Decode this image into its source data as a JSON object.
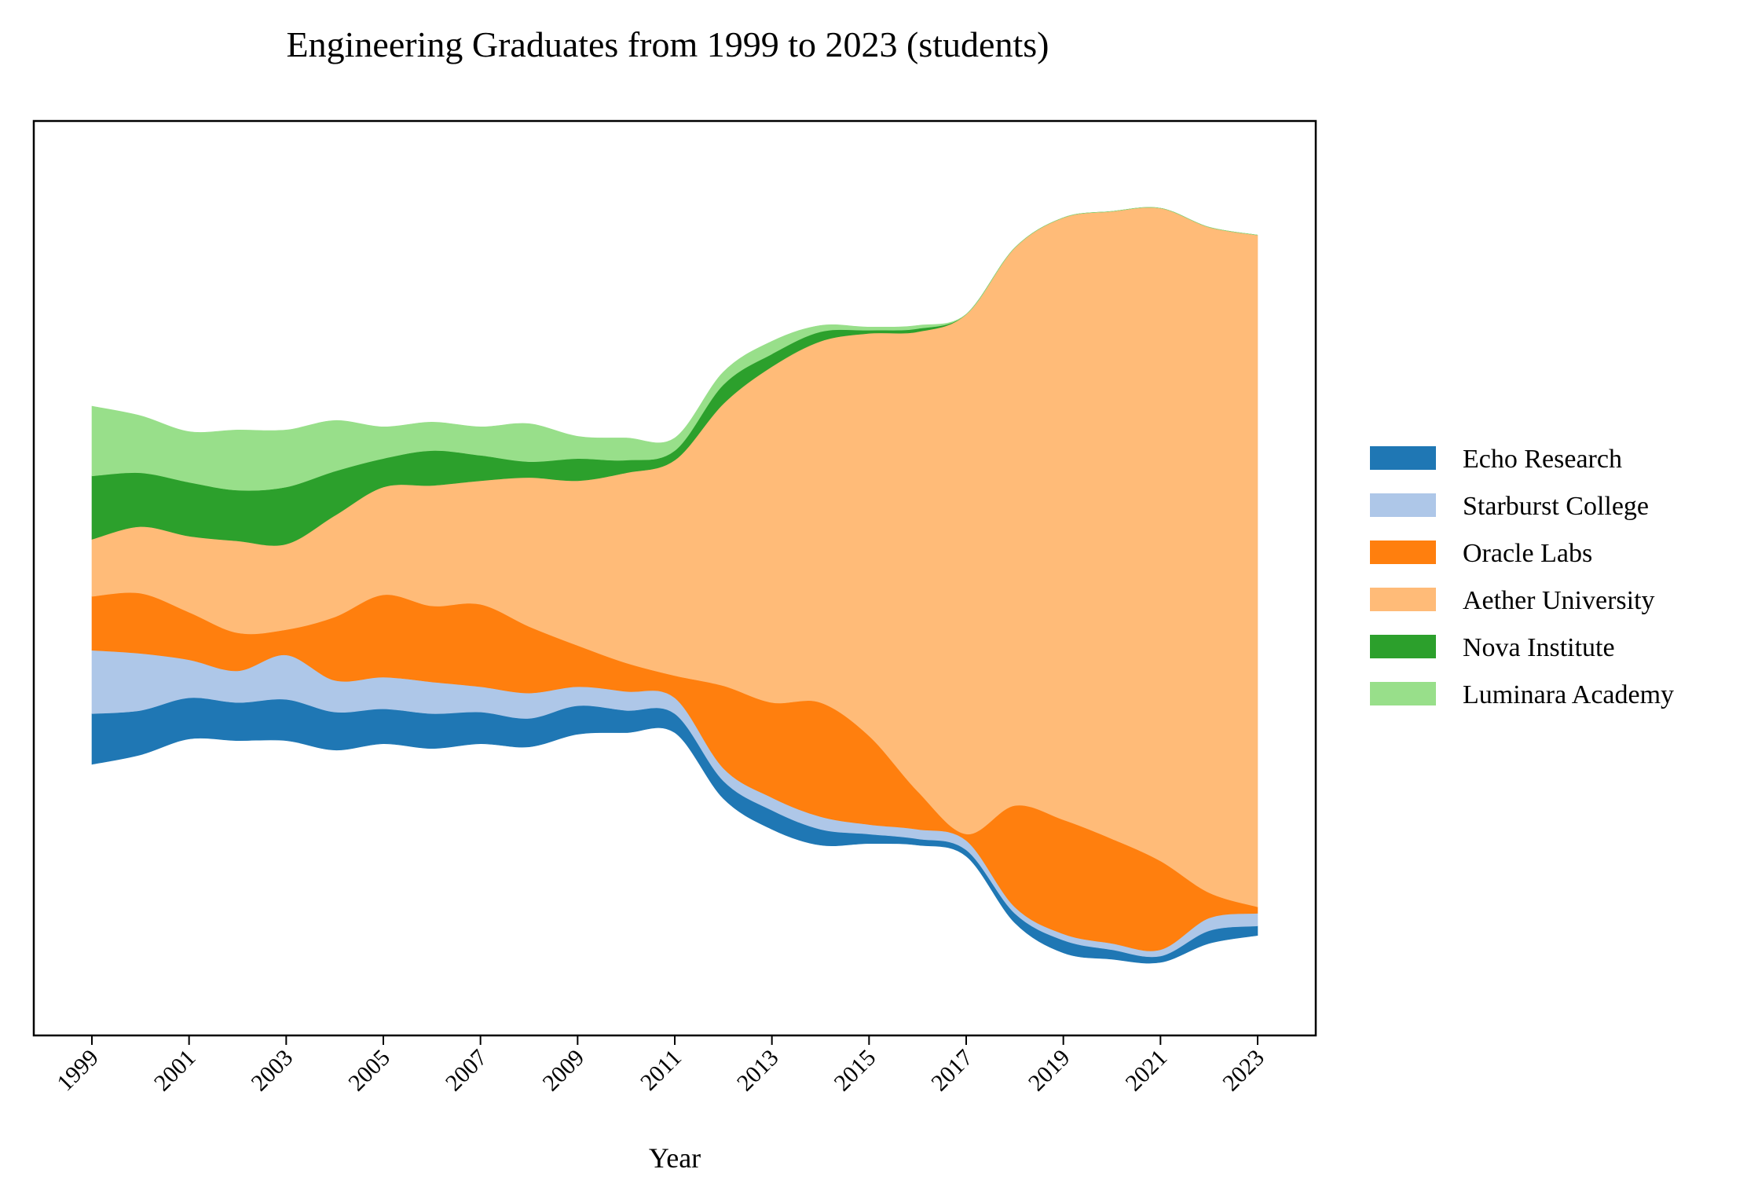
{
  "chart_data": {
    "type": "area",
    "subtype": "streamgraph",
    "title": "Engineering Graduates from 1999 to 2023 (students)",
    "xlabel": "Year",
    "ylabel": "",
    "x": [
      1999,
      2000,
      2001,
      2002,
      2003,
      2004,
      2005,
      2006,
      2007,
      2008,
      2009,
      2010,
      2011,
      2012,
      2013,
      2014,
      2015,
      2016,
      2017,
      2018,
      2019,
      2020,
      2021,
      2022,
      2023
    ],
    "x_tick_labels": [
      "1999",
      "2001",
      "2003",
      "2005",
      "2007",
      "2009",
      "2011",
      "2013",
      "2015",
      "2017",
      "2019",
      "2021",
      "2023"
    ],
    "y_axis_visible": false,
    "grid": false,
    "legend_position": "right",
    "series": [
      {
        "name": "Echo Research",
        "color": "#1f77b4",
        "values": [
          80,
          70,
          65,
          60,
          65,
          60,
          55,
          55,
          50,
          45,
          45,
          35,
          30,
          28,
          30,
          25,
          15,
          10,
          10,
          15,
          20,
          15,
          10,
          20,
          15
        ]
      },
      {
        "name": "Starburst College",
        "color": "#aec7e8",
        "values": [
          100,
          90,
          60,
          50,
          70,
          50,
          50,
          50,
          40,
          40,
          30,
          30,
          25,
          20,
          20,
          20,
          15,
          15,
          15,
          10,
          10,
          10,
          10,
          20,
          20
        ]
      },
      {
        "name": "Oracle Labs",
        "color": "#ff7f0e",
        "values": [
          85,
          95,
          75,
          60,
          40,
          100,
          130,
          120,
          130,
          105,
          65,
          45,
          35,
          130,
          150,
          180,
          140,
          60,
          10,
          160,
          180,
          165,
          140,
          40,
          10
        ]
      },
      {
        "name": "Aether University",
        "color": "#ffbb78",
        "values": [
          90,
          105,
          120,
          145,
          135,
          160,
          170,
          190,
          195,
          235,
          260,
          300,
          340,
          445,
          530,
          570,
          635,
          725,
          820,
          880,
          950,
          990,
          1030,
          1050,
          1060
        ]
      },
      {
        "name": "Nova Institute",
        "color": "#2ca02c",
        "values": [
          100,
          85,
          85,
          80,
          90,
          70,
          45,
          55,
          40,
          25,
          35,
          20,
          15,
          30,
          20,
          15,
          5,
          5,
          0,
          0,
          0,
          0,
          0,
          0,
          0
        ]
      },
      {
        "name": "Luminara Academy",
        "color": "#98df8a",
        "values": [
          110,
          90,
          80,
          95,
          90,
          80,
          50,
          45,
          45,
          60,
          35,
          35,
          20,
          20,
          20,
          10,
          5,
          5,
          0,
          0,
          0,
          0,
          0,
          0,
          0
        ]
      }
    ]
  }
}
